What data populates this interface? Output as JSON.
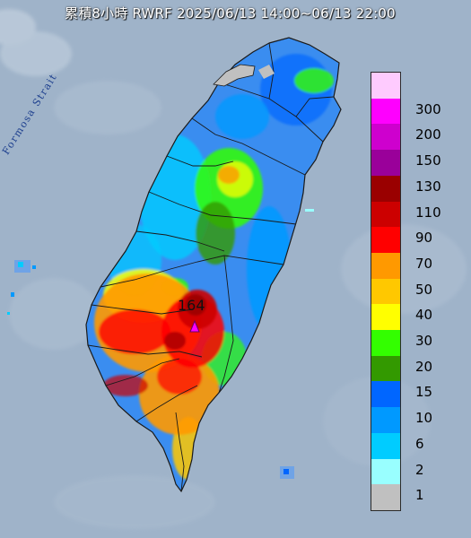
{
  "title": "累積8小時 RWRF 2025/06/13 14:00~06/13 22:00",
  "strait_label": "Formosa Strait",
  "max_value_label": "164",
  "colors": {
    "sea": "#9fb3c9",
    "land_base": "#6fa3e6",
    "boundary": "#1a1a1a"
  },
  "legend": [
    {
      "label": "300",
      "color": "#fecbfe"
    },
    {
      "label": "200",
      "color": "#fe00fe"
    },
    {
      "label": "150",
      "color": "#ce00ce"
    },
    {
      "label": "130",
      "color": "#9a009a"
    },
    {
      "label": "110",
      "color": "#9a0000"
    },
    {
      "label": "90",
      "color": "#cc0000"
    },
    {
      "label": "70",
      "color": "#ff0000"
    },
    {
      "label": "50",
      "color": "#ff9900"
    },
    {
      "label": "40",
      "color": "#ffc800"
    },
    {
      "label": "30",
      "color": "#ffff00"
    },
    {
      "label": "20",
      "color": "#33ff00"
    },
    {
      "label": "15",
      "color": "#339900"
    },
    {
      "label": "10",
      "color": "#0066ff"
    },
    {
      "label": "6",
      "color": "#0099ff"
    },
    {
      "label": "2",
      "color": "#00ccff"
    },
    {
      "label": "1",
      "color": "#99ffff"
    },
    {
      "label": "",
      "color": "#c0c0c0"
    }
  ]
}
